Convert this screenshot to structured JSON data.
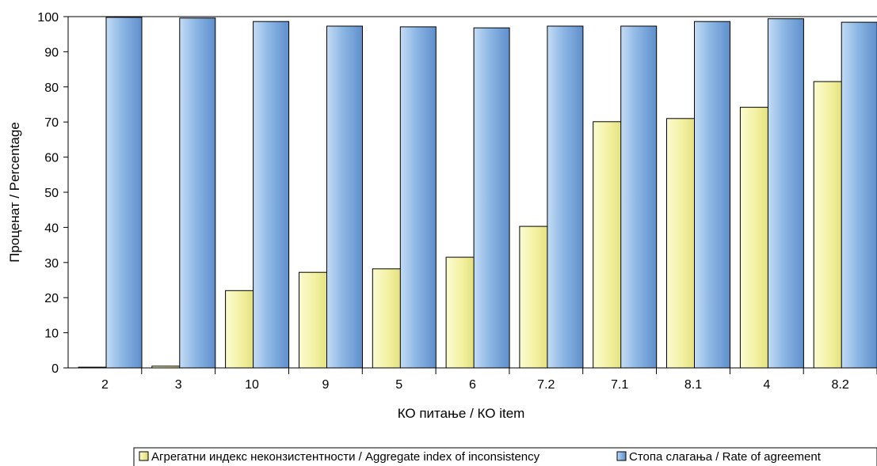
{
  "chart_data": {
    "type": "bar",
    "categories": [
      "2",
      "3",
      "10",
      "9",
      "5",
      "6",
      "7.2",
      "7.1",
      "8.1",
      "4",
      "8.2"
    ],
    "series": [
      {
        "name": "Агрегатни индекс неконзистентности / Aggregate index of inconsistency",
        "color": "#f2f099",
        "values": [
          0.2,
          0.5,
          22,
          27.2,
          28.2,
          31.5,
          40.3,
          70.1,
          71,
          74.2,
          81.5
        ]
      },
      {
        "name": "Стопа слагања / Rate of agreement",
        "color": "#7aa7dc",
        "values": [
          99.8,
          99.6,
          98.6,
          97.3,
          97.1,
          96.8,
          97.3,
          97.3,
          98.6,
          99.4,
          98.4
        ]
      }
    ],
    "xlabel": "КО питање / КО item",
    "ylabel": "Проценат / Percentage",
    "ylim": [
      0,
      100
    ],
    "yticks": [
      0,
      10,
      20,
      30,
      40,
      50,
      60,
      70,
      80,
      90,
      100
    ],
    "grid": false,
    "legend_position": "bottom-right"
  }
}
